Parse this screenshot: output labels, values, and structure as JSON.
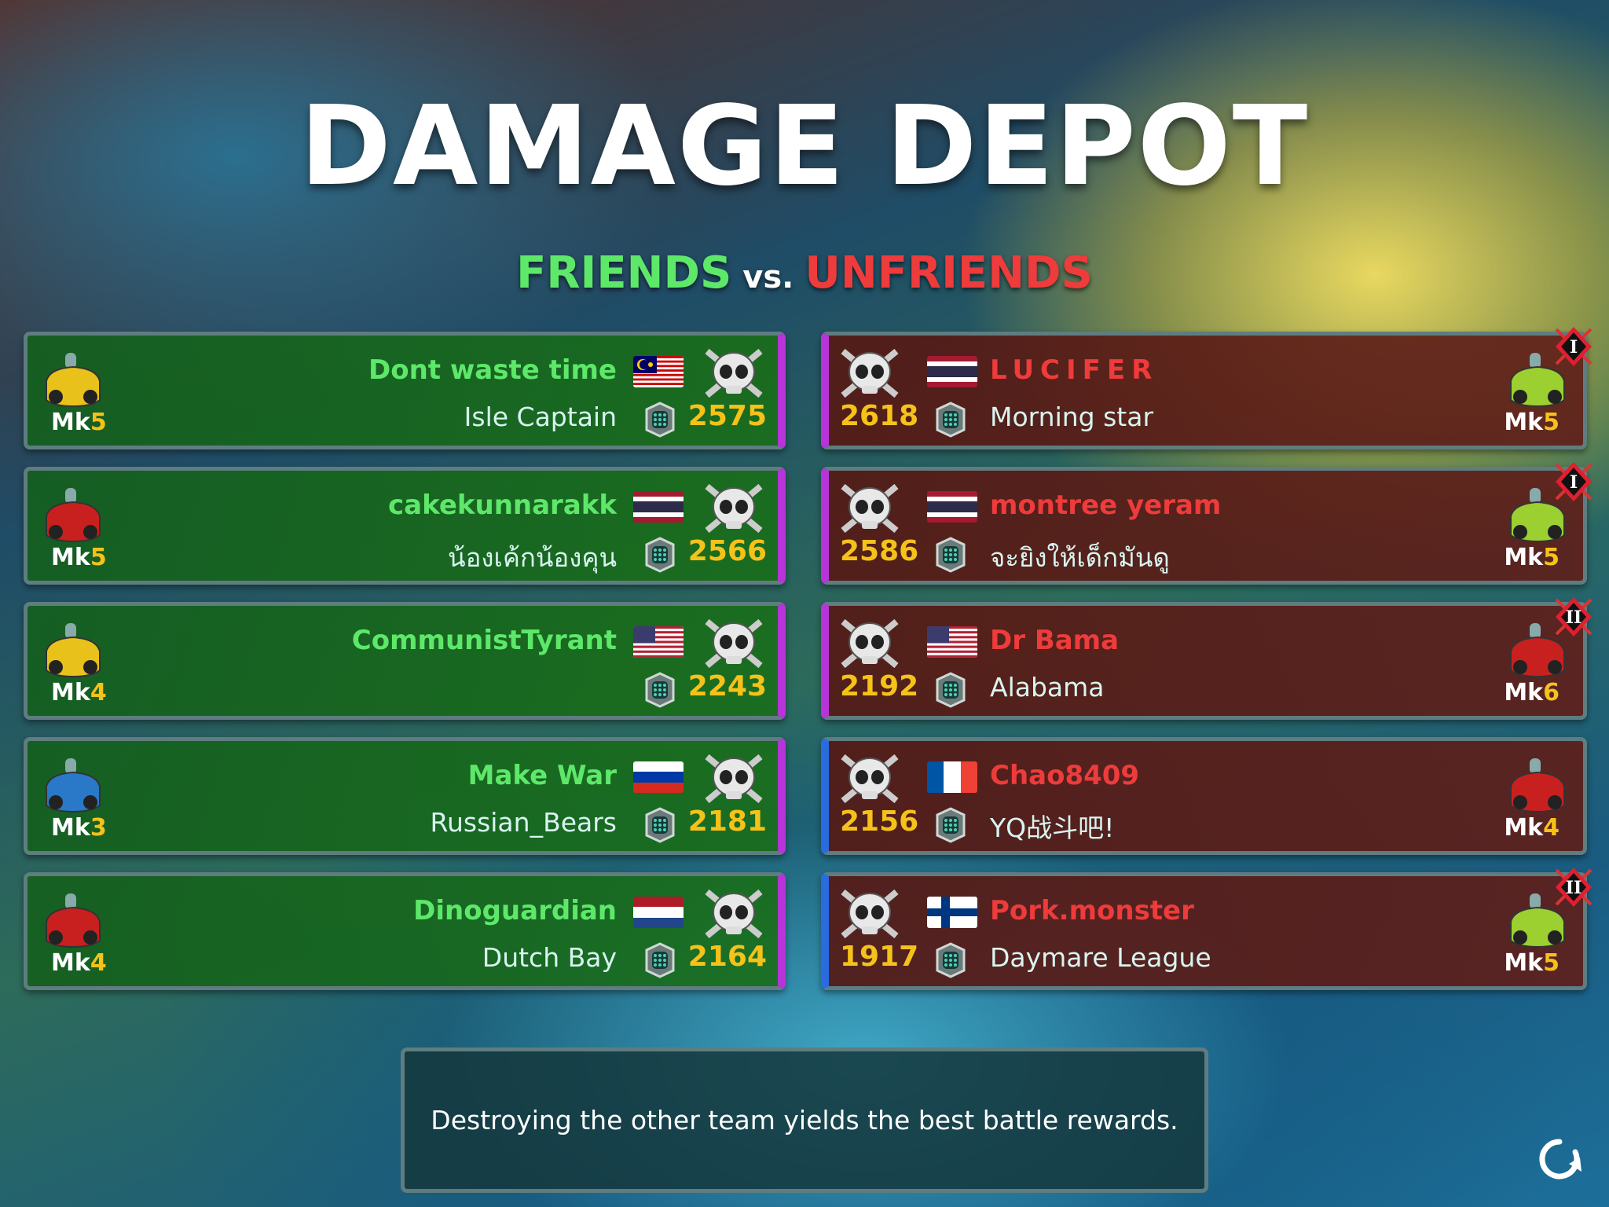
{
  "title": "DAMAGE DEPOT",
  "subtitle": {
    "friends": "FRIENDS",
    "vs": "vs.",
    "unfriends": "UNFRIENDS"
  },
  "colors": {
    "friends": "#5ee86a",
    "unfriends": "#ee3b3b",
    "score": "#f5c21a",
    "friend_panel": "#1a6a22",
    "unfriend_panel": "#5a1c18"
  },
  "friends": [
    {
      "name": "Dont waste time",
      "flag": "malaysia",
      "clan": "Isle Captain",
      "score": "2575",
      "mk": "Mk",
      "mk_level": "5",
      "car": "yellow"
    },
    {
      "name": "cakekunnarakk",
      "flag": "thailand",
      "clan": "น้องเค้กน้องคุน",
      "score": "2566",
      "mk": "Mk",
      "mk_level": "5",
      "car": "red"
    },
    {
      "name": "CommunistTyrant",
      "flag": "usa",
      "clan": "",
      "score": "2243",
      "mk": "Mk",
      "mk_level": "4",
      "car": "yellow"
    },
    {
      "name": "Make War",
      "flag": "russia",
      "clan": "Russian_Bears",
      "score": "2181",
      "mk": "Mk",
      "mk_level": "3",
      "car": "blue"
    },
    {
      "name": "Dinoguardian",
      "flag": "netherlands",
      "clan": "Dutch Bay",
      "score": "2164",
      "mk": "Mk",
      "mk_level": "4",
      "car": "red"
    }
  ],
  "unfriends": [
    {
      "name": "LUCIFER",
      "flag": "thailand",
      "clan": "Morning star",
      "score": "2618",
      "mk": "Mk",
      "mk_level": "5",
      "car": "green",
      "rank": "I"
    },
    {
      "name": "montree yeram",
      "flag": "thailand",
      "clan": "จะยิงให้เด็กมันดู",
      "score": "2586",
      "mk": "Mk",
      "mk_level": "5",
      "car": "green",
      "rank": "I"
    },
    {
      "name": "Dr Bama",
      "flag": "usa",
      "clan": "Alabama",
      "score": "2192",
      "mk": "Mk",
      "mk_level": "6",
      "car": "red",
      "rank": "II"
    },
    {
      "name": "Chao8409",
      "flag": "france",
      "clan": "YQ战斗吧!",
      "score": "2156",
      "mk": "Mk",
      "mk_level": "4",
      "car": "red",
      "rank": ""
    },
    {
      "name": "Pork.monster",
      "flag": "finland",
      "clan": "Daymare League",
      "score": "1917",
      "mk": "Mk",
      "mk_level": "5",
      "car": "green",
      "rank": "II"
    }
  ],
  "tip": "Destroying the other team yields the best battle rewards.",
  "icons": {
    "skull": "skull-crossbones-icon",
    "badge": "clan-badge-icon",
    "refresh": "refresh-icon"
  }
}
